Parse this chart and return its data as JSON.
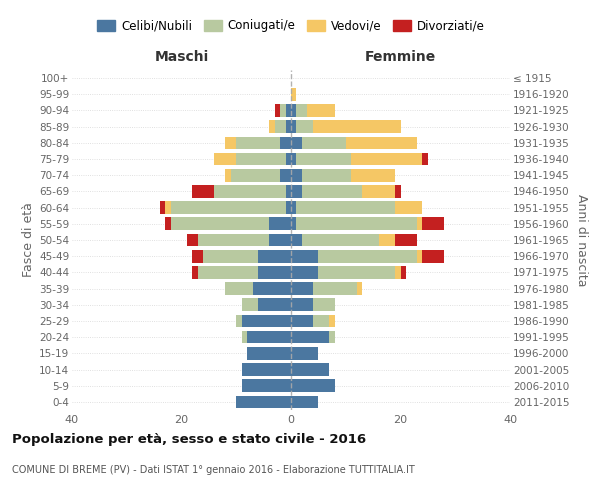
{
  "age_groups": [
    "0-4",
    "5-9",
    "10-14",
    "15-19",
    "20-24",
    "25-29",
    "30-34",
    "35-39",
    "40-44",
    "45-49",
    "50-54",
    "55-59",
    "60-64",
    "65-69",
    "70-74",
    "75-79",
    "80-84",
    "85-89",
    "90-94",
    "95-99",
    "100+"
  ],
  "birth_years": [
    "2011-2015",
    "2006-2010",
    "2001-2005",
    "1996-2000",
    "1991-1995",
    "1986-1990",
    "1981-1985",
    "1976-1980",
    "1971-1975",
    "1966-1970",
    "1961-1965",
    "1956-1960",
    "1951-1955",
    "1946-1950",
    "1941-1945",
    "1936-1940",
    "1931-1935",
    "1926-1930",
    "1921-1925",
    "1916-1920",
    "≤ 1915"
  ],
  "maschi": {
    "celibi": [
      10,
      9,
      9,
      8,
      8,
      9,
      6,
      7,
      6,
      6,
      4,
      4,
      1,
      1,
      2,
      1,
      2,
      1,
      1,
      0,
      0
    ],
    "coniugati": [
      0,
      0,
      0,
      0,
      1,
      1,
      3,
      5,
      11,
      10,
      13,
      18,
      21,
      13,
      9,
      9,
      8,
      2,
      1,
      0,
      0
    ],
    "vedovi": [
      0,
      0,
      0,
      0,
      0,
      0,
      0,
      0,
      0,
      0,
      0,
      0,
      1,
      0,
      1,
      4,
      2,
      1,
      0,
      0,
      0
    ],
    "divorziati": [
      0,
      0,
      0,
      0,
      0,
      0,
      0,
      0,
      1,
      2,
      2,
      1,
      1,
      4,
      0,
      0,
      0,
      0,
      1,
      0,
      0
    ]
  },
  "femmine": {
    "nubili": [
      5,
      8,
      7,
      5,
      7,
      4,
      4,
      4,
      5,
      5,
      2,
      1,
      1,
      2,
      2,
      1,
      2,
      1,
      1,
      0,
      0
    ],
    "coniugate": [
      0,
      0,
      0,
      0,
      1,
      3,
      4,
      8,
      14,
      18,
      14,
      22,
      18,
      11,
      9,
      10,
      8,
      3,
      2,
      0,
      0
    ],
    "vedove": [
      0,
      0,
      0,
      0,
      0,
      1,
      0,
      1,
      1,
      1,
      3,
      1,
      5,
      6,
      8,
      13,
      13,
      16,
      5,
      1,
      0
    ],
    "divorziate": [
      0,
      0,
      0,
      0,
      0,
      0,
      0,
      0,
      1,
      4,
      4,
      4,
      0,
      1,
      0,
      1,
      0,
      0,
      0,
      0,
      0
    ]
  },
  "colors": {
    "celibi_nubili": "#4b77a0",
    "coniugati": "#b8c9a0",
    "vedovi": "#f5c765",
    "divorziati": "#c42020"
  },
  "title": "Popolazione per età, sesso e stato civile - 2016",
  "subtitle": "COMUNE DI BREME (PV) - Dati ISTAT 1° gennaio 2016 - Elaborazione TUTTITALIA.IT",
  "xlabel_left": "Maschi",
  "xlabel_right": "Femmine",
  "ylabel_left": "Fasce di età",
  "ylabel_right": "Anni di nascita",
  "xlim": 40,
  "background_color": "#ffffff",
  "grid_color": "#cccccc",
  "legend_labels": [
    "Celibi/Nubili",
    "Coniugati/e",
    "Vedovi/e",
    "Divorziati/e"
  ]
}
